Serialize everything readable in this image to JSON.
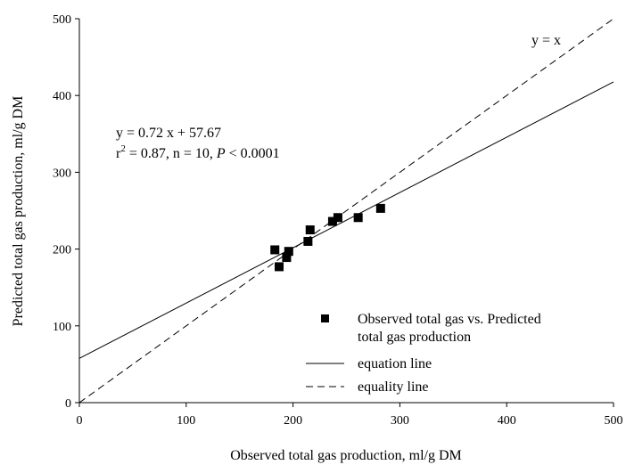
{
  "chart_data": {
    "type": "scatter",
    "title": "",
    "xlabel": "Observed total gas production, ml/g DM",
    "ylabel": "Predicted total gas production, ml/g DM",
    "xlim": [
      0,
      500
    ],
    "ylim": [
      0,
      500
    ],
    "xticks": [
      "0",
      "100",
      "200",
      "300",
      "400",
      "500"
    ],
    "yticks": [
      "0",
      "100",
      "200",
      "300",
      "400",
      "500"
    ],
    "grid": false,
    "legend_position": "bottom-right",
    "series": [
      {
        "name": "Observed total gas vs. Predicted total gas production",
        "kind": "points",
        "marker": "square",
        "points": [
          {
            "x": 183,
            "y": 199
          },
          {
            "x": 187,
            "y": 177
          },
          {
            "x": 194,
            "y": 189
          },
          {
            "x": 196,
            "y": 197
          },
          {
            "x": 214,
            "y": 210
          },
          {
            "x": 216,
            "y": 225
          },
          {
            "x": 237,
            "y": 236
          },
          {
            "x": 242,
            "y": 241
          },
          {
            "x": 261,
            "y": 241
          },
          {
            "x": 282,
            "y": 253
          }
        ]
      },
      {
        "name": "equation line",
        "kind": "line",
        "dash": "solid",
        "slope": 0.72,
        "intercept": 57.67
      },
      {
        "name": "equality line",
        "kind": "line",
        "dash": "dashed",
        "slope": 1,
        "intercept": 0
      }
    ],
    "annotations": {
      "equation": "y = 0.72 x + 57.67",
      "stats_r": "r",
      "stats_sup": "2",
      "stats_mid": " = 0.87, n = 10, ",
      "stats_p": "P",
      "stats_end": " < 0.0001",
      "identity": "y = x"
    }
  }
}
